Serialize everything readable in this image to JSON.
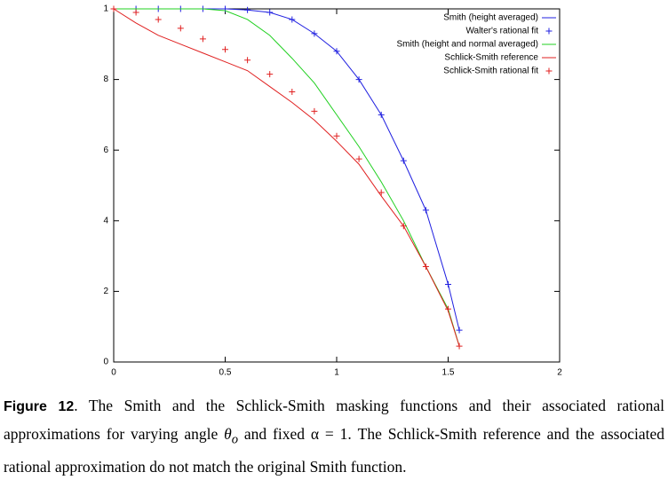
{
  "chart_data": {
    "type": "line",
    "x": [
      0,
      0.1,
      0.2,
      0.3,
      0.4,
      0.5,
      0.6,
      0.7,
      0.8,
      0.9,
      1.0,
      1.1,
      1.2,
      1.3,
      1.4,
      1.5,
      1.55
    ],
    "series": [
      {
        "name": "Smith (height averaged)",
        "color": "#2020e0",
        "style": "line",
        "values": [
          1,
          1,
          1,
          1,
          1,
          1,
          0.997,
          0.99,
          0.97,
          0.93,
          0.88,
          0.8,
          0.7,
          0.57,
          0.43,
          0.22,
          0.09
        ]
      },
      {
        "name": "Walter's rational fit",
        "color": "#2020e0",
        "style": "points",
        "values": [
          1,
          1,
          1,
          1,
          1,
          1,
          0.997,
          0.99,
          0.97,
          0.93,
          0.88,
          0.8,
          0.7,
          0.57,
          0.43,
          0.22,
          0.09
        ]
      },
      {
        "name": "Smith (height and normal averaged)",
        "color": "#20d020",
        "style": "line",
        "values": [
          1,
          1,
          1,
          1,
          1,
          0.995,
          0.97,
          0.925,
          0.86,
          0.79,
          0.7,
          0.61,
          0.51,
          0.4,
          0.27,
          0.15,
          0.045
        ]
      },
      {
        "name": "Schlick-Smith reference",
        "color": "#e02020",
        "style": "line",
        "values": [
          1,
          0.96,
          0.925,
          0.9,
          0.875,
          0.85,
          0.825,
          0.78,
          0.735,
          0.685,
          0.625,
          0.56,
          0.47,
          0.385,
          0.27,
          0.145,
          0.045
        ]
      },
      {
        "name": "Schlick-Smith rational fit",
        "color": "#e02020",
        "style": "points",
        "values": [
          1,
          0.99,
          0.97,
          0.945,
          0.915,
          0.885,
          0.855,
          0.815,
          0.765,
          0.71,
          0.64,
          0.575,
          0.48,
          0.385,
          0.27,
          0.15,
          0.045
        ]
      }
    ],
    "xlim": [
      0,
      2
    ],
    "xticks": [
      0,
      0.5,
      1,
      1.5,
      2
    ],
    "ylim": [
      0,
      1
    ],
    "yticks": [
      0,
      {
        "value": 0.2,
        "label": "2"
      },
      {
        "value": 0.4,
        "label": "4"
      },
      {
        "value": 0.6,
        "label": "6"
      },
      {
        "value": 0.8,
        "label": "8"
      },
      1
    ],
    "legend": "upper-right"
  },
  "caption": {
    "label": "Figure 12",
    "text1": ". The Smith and the Schlick-Smith masking functions and their associated rational approximations for varying angle ",
    "symbol": "θ",
    "sub": "o",
    "text2": " and fixed α = 1.  The Schlick-Smith reference and the associated rational approximation do not match the original Smith function."
  }
}
